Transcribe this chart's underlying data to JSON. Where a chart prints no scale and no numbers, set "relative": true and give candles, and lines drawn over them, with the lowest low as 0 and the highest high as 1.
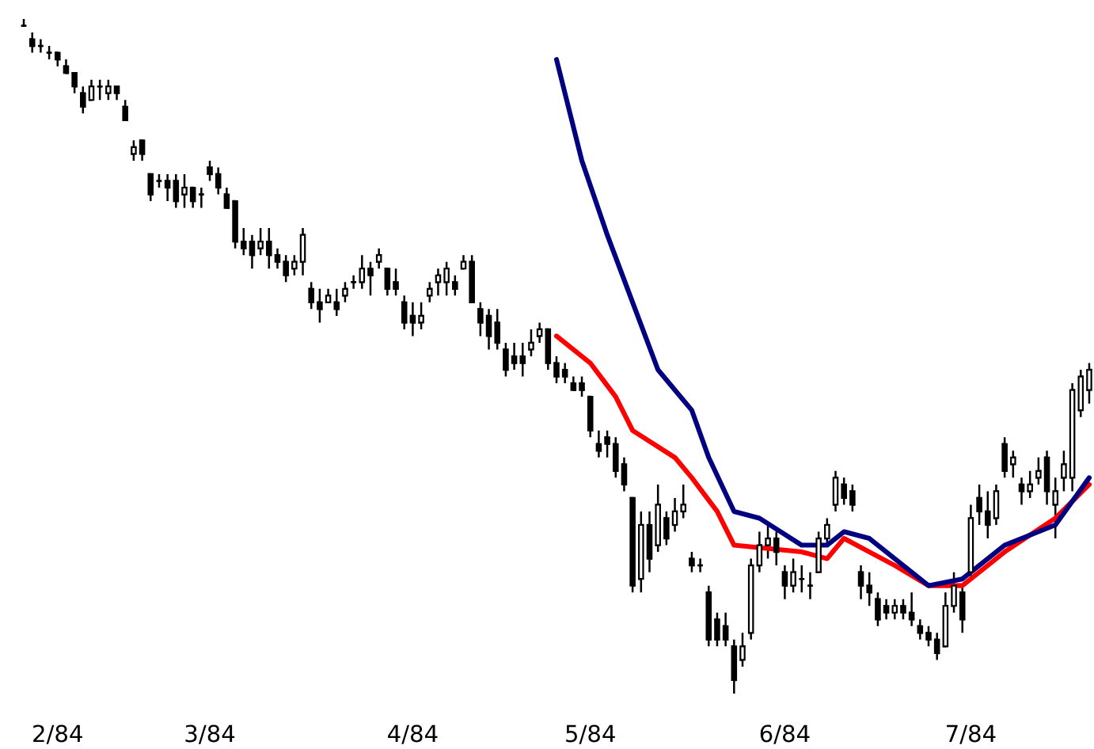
{
  "chart_data": {
    "type": "candlestick",
    "relative": true,
    "color": "#000000",
    "grid": false,
    "legend": false,
    "categories": [
      null,
      null,
      null,
      null,
      "2/84",
      null,
      null,
      null,
      null,
      null,
      null,
      null,
      null,
      null,
      null,
      null,
      null,
      null,
      null,
      null,
      null,
      null,
      "3/84",
      null,
      null,
      null,
      null,
      null,
      null,
      null,
      null,
      null,
      null,
      null,
      null,
      null,
      null,
      null,
      null,
      null,
      null,
      null,
      null,
      null,
      null,
      null,
      "4/84",
      null,
      null,
      null,
      null,
      null,
      null,
      null,
      null,
      null,
      null,
      null,
      null,
      null,
      null,
      null,
      null,
      null,
      null,
      null,
      null,
      "5/84",
      null,
      null,
      null,
      null,
      null,
      null,
      null,
      null,
      null,
      null,
      null,
      null,
      null,
      null,
      null,
      null,
      null,
      null,
      null,
      null,
      null,
      null,
      "6/84",
      null,
      null,
      null,
      null,
      null,
      null,
      null,
      null,
      null,
      null,
      null,
      null,
      null,
      null,
      null,
      null,
      null,
      null,
      null,
      null,
      null,
      "7/84",
      null,
      null,
      null,
      null,
      null,
      null,
      null,
      null,
      null,
      null,
      null,
      null,
      null,
      null
    ],
    "ohlc": [
      [
        0.99,
        1.0,
        0.99,
        0.99
      ],
      [
        0.97,
        0.98,
        0.95,
        0.96
      ],
      [
        0.96,
        0.97,
        0.95,
        0.96
      ],
      [
        0.95,
        0.96,
        0.94,
        0.95
      ],
      [
        0.95,
        0.95,
        0.93,
        0.94
      ],
      [
        0.93,
        0.94,
        0.92,
        0.92
      ],
      [
        0.92,
        0.92,
        0.89,
        0.9
      ],
      [
        0.89,
        0.9,
        0.86,
        0.87
      ],
      [
        0.88,
        0.91,
        0.88,
        0.9
      ],
      [
        0.9,
        0.91,
        0.88,
        0.9
      ],
      [
        0.89,
        0.91,
        0.88,
        0.9
      ],
      [
        0.9,
        0.9,
        0.88,
        0.89
      ],
      [
        0.87,
        0.88,
        0.85,
        0.85
      ],
      [
        0.8,
        0.82,
        0.79,
        0.81
      ],
      [
        0.82,
        0.82,
        0.79,
        0.8
      ],
      [
        0.77,
        0.77,
        0.73,
        0.74
      ],
      [
        0.76,
        0.77,
        0.75,
        0.76
      ],
      [
        0.76,
        0.77,
        0.73,
        0.75
      ],
      [
        0.76,
        0.77,
        0.72,
        0.73
      ],
      [
        0.74,
        0.77,
        0.72,
        0.75
      ],
      [
        0.75,
        0.75,
        0.72,
        0.73
      ],
      [
        0.74,
        0.75,
        0.72,
        0.74
      ],
      [
        0.78,
        0.79,
        0.76,
        0.77
      ],
      [
        0.77,
        0.78,
        0.74,
        0.75
      ],
      [
        0.74,
        0.75,
        0.72,
        0.72
      ],
      [
        0.73,
        0.73,
        0.66,
        0.67
      ],
      [
        0.67,
        0.69,
        0.65,
        0.66
      ],
      [
        0.67,
        0.68,
        0.63,
        0.65
      ],
      [
        0.66,
        0.69,
        0.65,
        0.67
      ],
      [
        0.67,
        0.69,
        0.63,
        0.65
      ],
      [
        0.65,
        0.66,
        0.63,
        0.64
      ],
      [
        0.64,
        0.65,
        0.61,
        0.62
      ],
      [
        0.63,
        0.65,
        0.62,
        0.64
      ],
      [
        0.64,
        0.69,
        0.62,
        0.68
      ],
      [
        0.6,
        0.61,
        0.57,
        0.58
      ],
      [
        0.58,
        0.6,
        0.55,
        0.57
      ],
      [
        0.58,
        0.6,
        0.58,
        0.59
      ],
      [
        0.58,
        0.6,
        0.56,
        0.57
      ],
      [
        0.59,
        0.61,
        0.58,
        0.6
      ],
      [
        0.61,
        0.62,
        0.6,
        0.61
      ],
      [
        0.61,
        0.65,
        0.6,
        0.63
      ],
      [
        0.63,
        0.64,
        0.59,
        0.62
      ],
      [
        0.64,
        0.66,
        0.63,
        0.65
      ],
      [
        0.63,
        0.63,
        0.59,
        0.6
      ],
      [
        0.61,
        0.63,
        0.59,
        0.6
      ],
      [
        0.58,
        0.59,
        0.54,
        0.55
      ],
      [
        0.56,
        0.58,
        0.53,
        0.55
      ],
      [
        0.55,
        0.58,
        0.54,
        0.56
      ],
      [
        0.59,
        0.61,
        0.58,
        0.6
      ],
      [
        0.61,
        0.63,
        0.59,
        0.62
      ],
      [
        0.61,
        0.64,
        0.59,
        0.63
      ],
      [
        0.61,
        0.62,
        0.59,
        0.6
      ],
      [
        0.63,
        0.65,
        0.63,
        0.64
      ],
      [
        0.64,
        0.65,
        0.58,
        0.58
      ],
      [
        0.57,
        0.58,
        0.53,
        0.55
      ],
      [
        0.56,
        0.57,
        0.51,
        0.53
      ],
      [
        0.55,
        0.57,
        0.51,
        0.52
      ],
      [
        0.51,
        0.52,
        0.47,
        0.48
      ],
      [
        0.5,
        0.52,
        0.48,
        0.49
      ],
      [
        0.5,
        0.52,
        0.47,
        0.49
      ],
      [
        0.51,
        0.54,
        0.5,
        0.52
      ],
      [
        0.53,
        0.55,
        0.52,
        0.54
      ],
      [
        0.54,
        0.54,
        0.48,
        0.49
      ],
      [
        0.49,
        0.5,
        0.46,
        0.47
      ],
      [
        0.48,
        0.49,
        0.46,
        0.47
      ],
      [
        0.46,
        0.47,
        0.45,
        0.45
      ],
      [
        0.46,
        0.47,
        0.44,
        0.45
      ],
      [
        0.44,
        0.44,
        0.38,
        0.39
      ],
      [
        0.37,
        0.39,
        0.35,
        0.36
      ],
      [
        0.38,
        0.39,
        0.35,
        0.37
      ],
      [
        0.37,
        0.38,
        0.32,
        0.33
      ],
      [
        0.34,
        0.35,
        0.3,
        0.31
      ],
      [
        0.29,
        0.29,
        0.15,
        0.16
      ],
      [
        0.17,
        0.27,
        0.15,
        0.25
      ],
      [
        0.25,
        0.27,
        0.18,
        0.2
      ],
      [
        0.22,
        0.31,
        0.21,
        0.28
      ],
      [
        0.26,
        0.27,
        0.22,
        0.23
      ],
      [
        0.25,
        0.29,
        0.24,
        0.27
      ],
      [
        0.27,
        0.31,
        0.26,
        0.28
      ],
      [
        0.2,
        0.21,
        0.18,
        0.19
      ],
      [
        0.19,
        0.2,
        0.18,
        0.19
      ],
      [
        0.15,
        0.16,
        0.07,
        0.08
      ],
      [
        0.11,
        0.12,
        0.07,
        0.08
      ],
      [
        0.1,
        0.12,
        0.07,
        0.08
      ],
      [
        0.07,
        0.08,
        0.0,
        0.02
      ],
      [
        0.05,
        0.09,
        0.04,
        0.07
      ],
      [
        0.09,
        0.2,
        0.08,
        0.19
      ],
      [
        0.19,
        0.24,
        0.18,
        0.22
      ],
      [
        0.22,
        0.25,
        0.2,
        0.23
      ],
      [
        0.23,
        0.24,
        0.19,
        0.21
      ],
      [
        0.18,
        0.19,
        0.14,
        0.16
      ],
      [
        0.16,
        0.2,
        0.15,
        0.18
      ],
      [
        0.17,
        0.19,
        0.15,
        0.17
      ],
      [
        0.16,
        0.18,
        0.14,
        0.16
      ],
      [
        0.18,
        0.24,
        0.18,
        0.23
      ],
      [
        0.23,
        0.26,
        0.22,
        0.25
      ],
      [
        0.28,
        0.33,
        0.27,
        0.32
      ],
      [
        0.31,
        0.32,
        0.28,
        0.29
      ],
      [
        0.3,
        0.31,
        0.27,
        0.28
      ],
      [
        0.18,
        0.19,
        0.14,
        0.16
      ],
      [
        0.16,
        0.18,
        0.13,
        0.15
      ],
      [
        0.14,
        0.15,
        0.1,
        0.11
      ],
      [
        0.13,
        0.14,
        0.11,
        0.12
      ],
      [
        0.12,
        0.14,
        0.11,
        0.13
      ],
      [
        0.13,
        0.14,
        0.11,
        0.12
      ],
      [
        0.12,
        0.15,
        0.1,
        0.11
      ],
      [
        0.1,
        0.11,
        0.08,
        0.09
      ],
      [
        0.09,
        0.1,
        0.07,
        0.08
      ],
      [
        0.08,
        0.09,
        0.05,
        0.06
      ],
      [
        0.07,
        0.15,
        0.07,
        0.13
      ],
      [
        0.13,
        0.18,
        0.12,
        0.16
      ],
      [
        0.15,
        0.16,
        0.09,
        0.11
      ],
      [
        0.18,
        0.28,
        0.17,
        0.26
      ],
      [
        0.29,
        0.31,
        0.25,
        0.27
      ],
      [
        0.27,
        0.3,
        0.23,
        0.25
      ],
      [
        0.26,
        0.31,
        0.25,
        0.3
      ],
      [
        0.37,
        0.38,
        0.32,
        0.33
      ],
      [
        0.34,
        0.36,
        0.32,
        0.35
      ],
      [
        0.31,
        0.32,
        0.28,
        0.3
      ],
      [
        0.3,
        0.33,
        0.29,
        0.31
      ],
      [
        0.32,
        0.35,
        0.31,
        0.33
      ],
      [
        0.35,
        0.36,
        0.28,
        0.3
      ],
      [
        0.28,
        0.32,
        0.23,
        0.3
      ],
      [
        0.32,
        0.36,
        0.3,
        0.34
      ],
      [
        0.32,
        0.46,
        0.3,
        0.45
      ],
      [
        0.42,
        0.48,
        0.41,
        0.47
      ],
      [
        0.45,
        0.49,
        0.43,
        0.48
      ]
    ],
    "series": [
      {
        "type": "line",
        "color": "#ff0000",
        "values": [
          null,
          null,
          null,
          null,
          null,
          null,
          null,
          null,
          null,
          null,
          null,
          null,
          null,
          null,
          null,
          null,
          null,
          null,
          null,
          null,
          null,
          null,
          null,
          null,
          null,
          null,
          null,
          null,
          null,
          null,
          null,
          null,
          null,
          null,
          null,
          null,
          null,
          null,
          null,
          null,
          null,
          null,
          null,
          null,
          null,
          null,
          null,
          null,
          null,
          null,
          null,
          null,
          null,
          null,
          null,
          null,
          null,
          null,
          null,
          null,
          null,
          null,
          null,
          0.53,
          null,
          null,
          null,
          0.49,
          null,
          null,
          0.44,
          null,
          0.39,
          null,
          null,
          null,
          null,
          0.35,
          null,
          0.32,
          null,
          null,
          0.27,
          null,
          0.22,
          null,
          null,
          null,
          null,
          null,
          null,
          null,
          0.21,
          null,
          null,
          0.2,
          null,
          0.23,
          null,
          null,
          0.21,
          null,
          null,
          0.19,
          null,
          null,
          null,
          0.16,
          null,
          null,
          null,
          0.16,
          null,
          null,
          null,
          null,
          0.21,
          null,
          null,
          null,
          null,
          null,
          0.26,
          null,
          null,
          null,
          0.31
        ]
      },
      {
        "type": "line",
        "color": "#000080",
        "values": [
          null,
          null,
          null,
          null,
          null,
          null,
          null,
          null,
          null,
          null,
          null,
          null,
          null,
          null,
          null,
          null,
          null,
          null,
          null,
          null,
          null,
          null,
          null,
          null,
          null,
          null,
          null,
          null,
          null,
          null,
          null,
          null,
          null,
          null,
          null,
          null,
          null,
          null,
          null,
          null,
          null,
          null,
          null,
          null,
          null,
          null,
          null,
          null,
          null,
          null,
          null,
          null,
          null,
          null,
          null,
          null,
          null,
          null,
          null,
          null,
          null,
          null,
          null,
          0.94,
          null,
          null,
          0.79,
          null,
          null,
          0.68,
          null,
          null,
          0.58,
          null,
          null,
          0.48,
          null,
          null,
          null,
          0.42,
          null,
          0.35,
          null,
          null,
          0.27,
          null,
          null,
          0.26,
          null,
          null,
          null,
          null,
          0.22,
          null,
          null,
          0.22,
          null,
          0.24,
          null,
          null,
          0.23,
          null,
          null,
          0.2,
          null,
          null,
          null,
          0.16,
          null,
          null,
          null,
          0.17,
          null,
          null,
          null,
          null,
          0.22,
          null,
          null,
          null,
          null,
          null,
          0.25,
          null,
          null,
          null,
          0.32
        ]
      }
    ]
  }
}
